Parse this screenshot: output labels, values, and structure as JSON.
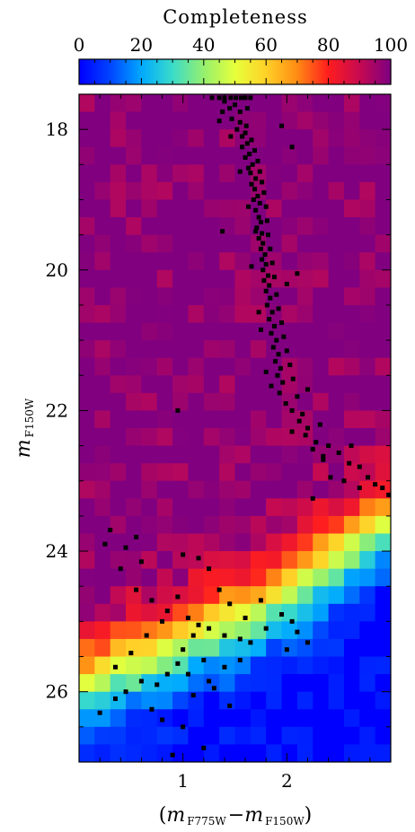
{
  "chart_data": {
    "type": "heatmap",
    "colorbar": {
      "title": "Completeness",
      "min": 0,
      "max": 100,
      "tick_labels": [
        "0",
        "20",
        "40",
        "60",
        "80",
        "100"
      ],
      "tick_values": [
        0,
        20,
        40,
        60,
        80,
        100
      ]
    },
    "xlabel": {
      "open": "(",
      "m1": "m",
      "sub1": "F775W",
      "dash": "−",
      "m2": "m",
      "sub2": "F150W",
      "close": ")"
    },
    "ylabel": {
      "m": "m",
      "sub": "F150W"
    },
    "xlim": [
      0,
      3
    ],
    "ylim": [
      27.0,
      17.5
    ],
    "y_inverted": true,
    "x_ticks": [
      1,
      2
    ],
    "x_tick_labels": [
      "1",
      "2"
    ],
    "y_ticks": [
      18,
      20,
      22,
      24,
      26
    ],
    "y_tick_labels": [
      "18",
      "20",
      "22",
      "24",
      "26"
    ],
    "grid": {
      "x_bin_width": 0.15,
      "y_bin_width": 0.25,
      "x_edges_start": 0,
      "y_edges_start": 17.5,
      "n_cols": 20,
      "n_rows": 38
    },
    "completeness_boundary": {
      "description_free": true,
      "color_pivot": [
        0.0,
        0.15,
        0.3,
        0.45,
        0.6,
        0.75,
        0.9,
        1.05,
        1.2,
        1.35,
        1.5,
        1.65,
        1.8,
        1.95,
        2.1,
        2.25,
        2.4,
        2.55,
        2.7,
        2.85
      ],
      "mag_50": [
        25.9,
        25.8,
        25.7,
        25.6,
        25.55,
        25.45,
        25.35,
        25.25,
        25.15,
        25.05,
        24.95,
        24.85,
        24.75,
        24.6,
        24.45,
        24.3,
        24.15,
        24.0,
        23.8,
        23.6
      ]
    },
    "points": [
      [
        1.28,
        17.55
      ],
      [
        1.35,
        17.55
      ],
      [
        1.4,
        17.55
      ],
      [
        1.46,
        17.55
      ],
      [
        1.51,
        17.55
      ],
      [
        1.56,
        17.55
      ],
      [
        1.6,
        17.55
      ],
      [
        1.65,
        17.55
      ],
      [
        1.5,
        17.65
      ],
      [
        1.45,
        17.7
      ],
      [
        1.38,
        17.75
      ],
      [
        1.55,
        17.75
      ],
      [
        1.47,
        17.85
      ],
      [
        1.35,
        17.88
      ],
      [
        1.61,
        17.95
      ],
      [
        1.52,
        18.0
      ],
      [
        1.57,
        18.1
      ],
      [
        1.62,
        18.2
      ],
      [
        1.57,
        18.25
      ],
      [
        1.64,
        18.35
      ],
      [
        1.6,
        18.4
      ],
      [
        1.67,
        18.5
      ],
      [
        1.63,
        18.55
      ],
      [
        1.65,
        18.62
      ],
      [
        1.7,
        18.7
      ],
      [
        1.66,
        18.78
      ],
      [
        1.69,
        18.85
      ],
      [
        1.72,
        18.95
      ],
      [
        1.68,
        19.0
      ],
      [
        1.74,
        19.05
      ],
      [
        1.7,
        19.15
      ],
      [
        1.73,
        19.25
      ],
      [
        1.75,
        19.32
      ],
      [
        1.71,
        19.4
      ],
      [
        1.76,
        19.48
      ],
      [
        1.73,
        19.55
      ],
      [
        1.77,
        19.62
      ],
      [
        1.75,
        19.7
      ],
      [
        1.79,
        19.78
      ],
      [
        1.76,
        19.85
      ],
      [
        1.8,
        19.92
      ],
      [
        1.77,
        20.0
      ],
      [
        1.82,
        20.08
      ],
      [
        1.78,
        20.15
      ],
      [
        1.83,
        20.22
      ],
      [
        1.8,
        20.3
      ],
      [
        1.84,
        20.4
      ],
      [
        1.81,
        20.5
      ],
      [
        1.86,
        20.6
      ],
      [
        1.83,
        20.7
      ],
      [
        1.88,
        20.8
      ],
      [
        1.85,
        20.9
      ],
      [
        1.9,
        21.0
      ],
      [
        1.87,
        21.1
      ],
      [
        1.92,
        21.2
      ],
      [
        1.89,
        21.3
      ],
      [
        1.94,
        21.4
      ],
      [
        1.91,
        21.5
      ],
      [
        1.96,
        21.6
      ],
      [
        1.93,
        21.75
      ],
      [
        1.99,
        21.9
      ],
      [
        2.05,
        22.0
      ],
      [
        2.12,
        22.15
      ],
      [
        2.18,
        22.35
      ],
      [
        2.25,
        22.55
      ],
      [
        2.35,
        22.7
      ],
      [
        2.4,
        22.5
      ],
      [
        2.5,
        22.6
      ],
      [
        2.6,
        22.75
      ],
      [
        2.7,
        22.8
      ],
      [
        2.78,
        22.95
      ],
      [
        2.85,
        23.05
      ],
      [
        2.92,
        23.1
      ],
      [
        2.98,
        23.2
      ],
      [
        2.55,
        23.0
      ],
      [
        1.4,
        17.6
      ],
      [
        1.62,
        17.7
      ],
      [
        1.55,
        17.9
      ],
      [
        1.6,
        18.05
      ],
      [
        1.66,
        18.15
      ],
      [
        1.69,
        18.3
      ],
      [
        1.72,
        18.45
      ],
      [
        1.74,
        18.6
      ],
      [
        1.76,
        18.75
      ],
      [
        1.78,
        18.9
      ],
      [
        1.8,
        19.1
      ],
      [
        1.81,
        19.3
      ],
      [
        1.82,
        19.5
      ],
      [
        1.84,
        19.7
      ],
      [
        1.86,
        19.9
      ],
      [
        1.88,
        20.1
      ],
      [
        1.9,
        20.35
      ],
      [
        1.92,
        20.55
      ],
      [
        1.95,
        20.75
      ],
      [
        1.97,
        20.95
      ],
      [
        2.0,
        21.15
      ],
      [
        2.03,
        21.35
      ],
      [
        2.06,
        21.55
      ],
      [
        2.1,
        21.8
      ],
      [
        2.15,
        22.05
      ],
      [
        2.2,
        22.25
      ],
      [
        2.28,
        22.45
      ],
      [
        2.35,
        22.65
      ],
      [
        2.1,
        20.05
      ],
      [
        2.0,
        20.2
      ],
      [
        1.7,
        19.45
      ],
      [
        1.63,
        19.1
      ],
      [
        1.55,
        18.6
      ],
      [
        1.46,
        18.1
      ],
      [
        1.73,
        20.6
      ],
      [
        1.66,
        19.95
      ],
      [
        2.05,
        18.25
      ],
      [
        1.95,
        17.95
      ],
      [
        2.2,
        21.7
      ],
      [
        2.32,
        22.2
      ],
      [
        2.42,
        22.95
      ],
      [
        2.25,
        23.25
      ],
      [
        2.62,
        22.5
      ],
      [
        2.7,
        23.1
      ],
      [
        1.75,
        20.85
      ],
      [
        1.8,
        21.45
      ],
      [
        1.85,
        21.65
      ],
      [
        2.05,
        22.3
      ],
      [
        0.95,
        22.0
      ],
      [
        1.38,
        19.45
      ],
      [
        0.55,
        23.8
      ],
      [
        0.45,
        23.95
      ],
      [
        0.3,
        23.7
      ],
      [
        0.6,
        24.15
      ],
      [
        0.4,
        24.25
      ],
      [
        0.55,
        24.55
      ],
      [
        1.15,
        24.1
      ],
      [
        1.0,
        24.05
      ],
      [
        0.7,
        24.7
      ],
      [
        0.85,
        24.85
      ],
      [
        1.05,
        24.95
      ],
      [
        1.15,
        25.05
      ],
      [
        1.25,
        25.1
      ],
      [
        1.4,
        25.2
      ],
      [
        1.55,
        25.25
      ],
      [
        1.65,
        25.3
      ],
      [
        1.8,
        25.1
      ],
      [
        1.95,
        24.9
      ],
      [
        2.05,
        25.0
      ],
      [
        2.1,
        25.15
      ],
      [
        2.2,
        25.3
      ],
      [
        2.0,
        25.4
      ],
      [
        1.1,
        25.2
      ],
      [
        1.0,
        25.4
      ],
      [
        0.95,
        25.6
      ],
      [
        0.85,
        25.75
      ],
      [
        0.75,
        25.9
      ],
      [
        0.6,
        25.85
      ],
      [
        0.45,
        26.0
      ],
      [
        0.35,
        26.1
      ],
      [
        0.7,
        26.25
      ],
      [
        0.8,
        26.4
      ],
      [
        1.1,
        26.05
      ],
      [
        1.25,
        25.85
      ],
      [
        1.4,
        25.65
      ],
      [
        1.55,
        25.55
      ],
      [
        1.3,
        25.95
      ],
      [
        1.45,
        26.2
      ],
      [
        0.9,
        26.9
      ],
      [
        1.2,
        26.8
      ],
      [
        1.25,
        24.25
      ],
      [
        1.35,
        24.55
      ],
      [
        1.45,
        24.75
      ],
      [
        0.95,
        24.65
      ],
      [
        1.05,
        25.75
      ],
      [
        1.2,
        25.55
      ],
      [
        0.65,
        25.2
      ],
      [
        0.5,
        25.45
      ],
      [
        0.35,
        25.65
      ],
      [
        1.6,
        24.95
      ],
      [
        1.75,
        24.7
      ],
      [
        0.8,
        25.0
      ],
      [
        1.0,
        26.5
      ],
      [
        0.2,
        26.3
      ],
      [
        0.25,
        23.9
      ]
    ]
  }
}
